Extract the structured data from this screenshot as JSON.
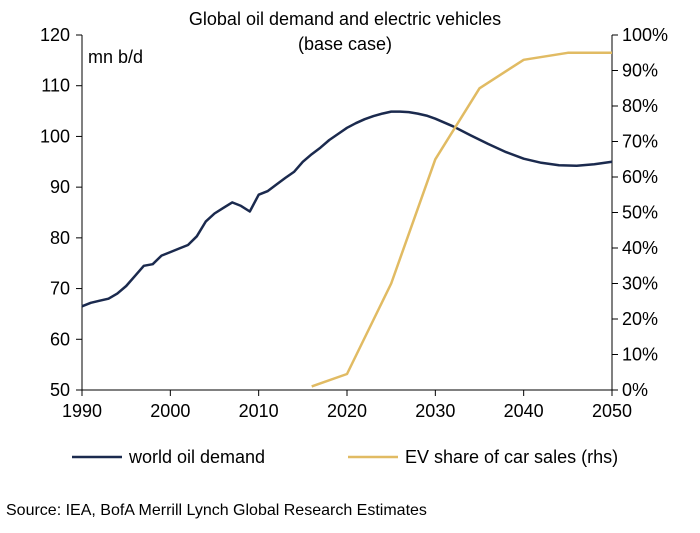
{
  "chart_data": {
    "type": "line",
    "title": "Global oil demand and electric vehicles",
    "subtitle": "(base case)",
    "left_axis_unit": "mn b/d",
    "x_ticks": [
      "1990",
      "2000",
      "2010",
      "2020",
      "2030",
      "2040",
      "2050"
    ],
    "xlim": [
      1990,
      2050
    ],
    "y_left_ticks": [
      "50",
      "60",
      "70",
      "80",
      "90",
      "100",
      "110",
      "120"
    ],
    "ylim_left": [
      50,
      120
    ],
    "y_right_ticks": [
      "0%",
      "10%",
      "20%",
      "30%",
      "40%",
      "50%",
      "60%",
      "70%",
      "80%",
      "90%",
      "100%"
    ],
    "ylim_right": [
      0,
      100
    ],
    "colors": {
      "oil": "#1b2a4e",
      "ev": "#e1bb63",
      "axis": "#000000"
    },
    "series": [
      {
        "name": "world oil demand",
        "axis": "left",
        "x": [
          1990,
          1991,
          1992,
          1993,
          1994,
          1995,
          1996,
          1997,
          1998,
          1999,
          2000,
          2001,
          2002,
          2003,
          2004,
          2005,
          2006,
          2007,
          2008,
          2009,
          2010,
          2011,
          2012,
          2013,
          2014,
          2015,
          2016,
          2017,
          2018,
          2019,
          2020,
          2021,
          2022,
          2023,
          2024,
          2025,
          2026,
          2027,
          2028,
          2029,
          2030,
          2032,
          2034,
          2036,
          2038,
          2040,
          2042,
          2044,
          2046,
          2048,
          2050
        ],
        "values": [
          66.5,
          67.2,
          67.6,
          68.0,
          69.0,
          70.5,
          72.5,
          74.5,
          74.8,
          76.5,
          77.2,
          77.9,
          78.6,
          80.3,
          83.2,
          84.8,
          85.9,
          87.0,
          86.3,
          85.2,
          88.5,
          89.2,
          90.5,
          91.8,
          93.0,
          95.0,
          96.5,
          97.8,
          99.3,
          100.5,
          101.7,
          102.6,
          103.4,
          104.0,
          104.5,
          104.9,
          104.9,
          104.8,
          104.5,
          104.1,
          103.5,
          102.0,
          100.2,
          98.5,
          96.9,
          95.6,
          94.8,
          94.3,
          94.2,
          94.5,
          95.0
        ]
      },
      {
        "name": "EV share of car sales (rhs)",
        "axis": "right",
        "x": [
          2016,
          2020,
          2025,
          2030,
          2035,
          2040,
          2045,
          2050
        ],
        "values": [
          1,
          4.5,
          30,
          65,
          85,
          93,
          95,
          95
        ]
      }
    ],
    "legend": "bottom",
    "source": "Source: IEA, BofA Merrill Lynch Global Research Estimates"
  }
}
